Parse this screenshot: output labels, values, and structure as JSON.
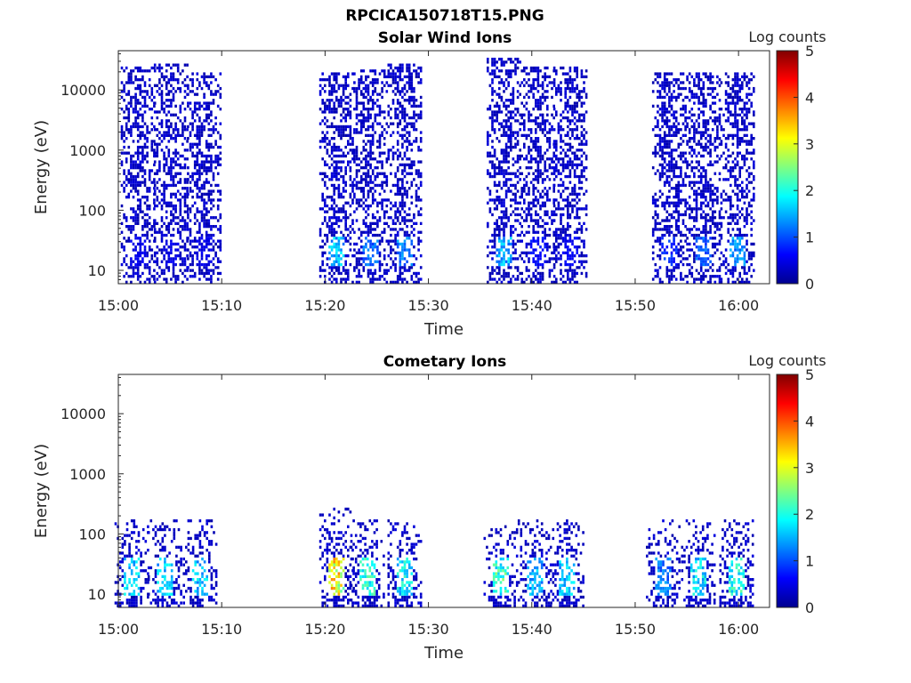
{
  "figure": {
    "suptitle": "RPCICA150718T15.PNG",
    "colormap": [
      "#00008f",
      "#0000ff",
      "#0080ff",
      "#00ffff",
      "#80ff80",
      "#ffff00",
      "#ff8000",
      "#ff0000",
      "#800000"
    ],
    "colorbar": {
      "label": "Log counts",
      "ticks": [
        "0",
        "1",
        "2",
        "3",
        "4",
        "5"
      ],
      "range": [
        0,
        5
      ]
    }
  },
  "chart_data": [
    {
      "type": "heatmap",
      "title": "Solar Wind Ions",
      "xlabel": "Time",
      "ylabel": "Energy (eV)",
      "x_ticks": [
        "15:00",
        "15:10",
        "15:20",
        "15:30",
        "15:40",
        "15:50",
        "16:00"
      ],
      "x_range_minutes": [
        0,
        63
      ],
      "y_ticks": [
        "10",
        "100",
        "1000",
        "10000"
      ],
      "y_scale": "log",
      "ylim": [
        6,
        45000
      ],
      "colorbar_label": "Log counts",
      "crange": [
        0,
        5
      ],
      "bursts": [
        {
          "center_min": 1.8,
          "peak": 0.6,
          "max_energy_ev": 25000
        },
        {
          "center_min": 5.0,
          "peak": 0.6,
          "max_energy_ev": 30000
        },
        {
          "center_min": 8.2,
          "peak": 0.6,
          "max_energy_ev": 20000
        },
        {
          "center_min": 21.0,
          "peak": 1.9,
          "max_energy_ev": 20000
        },
        {
          "center_min": 24.3,
          "peak": 1.4,
          "max_energy_ev": 22000
        },
        {
          "center_min": 27.6,
          "peak": 1.5,
          "max_energy_ev": 28000
        },
        {
          "center_min": 37.2,
          "peak": 1.8,
          "max_energy_ev": 35000
        },
        {
          "center_min": 40.5,
          "peak": 0.8,
          "max_energy_ev": 25000
        },
        {
          "center_min": 43.6,
          "peak": 0.7,
          "max_energy_ev": 25000
        },
        {
          "center_min": 53.2,
          "peak": 1.0,
          "max_energy_ev": 20000
        },
        {
          "center_min": 56.5,
          "peak": 1.3,
          "max_energy_ev": 20000
        },
        {
          "center_min": 59.8,
          "peak": 1.6,
          "max_energy_ev": 20000
        }
      ]
    },
    {
      "type": "heatmap",
      "title": "Cometary Ions",
      "xlabel": "Time",
      "ylabel": "Energy (eV)",
      "x_ticks": [
        "15:00",
        "15:10",
        "15:20",
        "15:30",
        "15:40",
        "15:50",
        "16:00"
      ],
      "x_range_minutes": [
        0,
        63
      ],
      "y_ticks": [
        "10",
        "100",
        "1000",
        "10000"
      ],
      "y_scale": "log",
      "ylim": [
        6,
        45000
      ],
      "colorbar_label": "Log counts",
      "crange": [
        0,
        5
      ],
      "bursts": [
        {
          "center_min": 1.2,
          "peak": 2.0,
          "max_energy_ev": 180
        },
        {
          "center_min": 4.4,
          "peak": 2.0,
          "max_energy_ev": 180
        },
        {
          "center_min": 7.8,
          "peak": 2.0,
          "max_energy_ev": 180
        },
        {
          "center_min": 21.0,
          "peak": 3.8,
          "max_energy_ev": 300
        },
        {
          "center_min": 24.0,
          "peak": 2.4,
          "max_energy_ev": 180
        },
        {
          "center_min": 27.6,
          "peak": 2.2,
          "max_energy_ev": 180
        },
        {
          "center_min": 36.9,
          "peak": 2.6,
          "max_energy_ev": 150
        },
        {
          "center_min": 40.2,
          "peak": 1.8,
          "max_energy_ev": 180
        },
        {
          "center_min": 43.3,
          "peak": 2.0,
          "max_energy_ev": 180
        },
        {
          "center_min": 52.6,
          "peak": 1.5,
          "max_energy_ev": 180
        },
        {
          "center_min": 56.0,
          "peak": 2.1,
          "max_energy_ev": 180
        },
        {
          "center_min": 59.7,
          "peak": 2.4,
          "max_energy_ev": 180
        }
      ]
    }
  ]
}
